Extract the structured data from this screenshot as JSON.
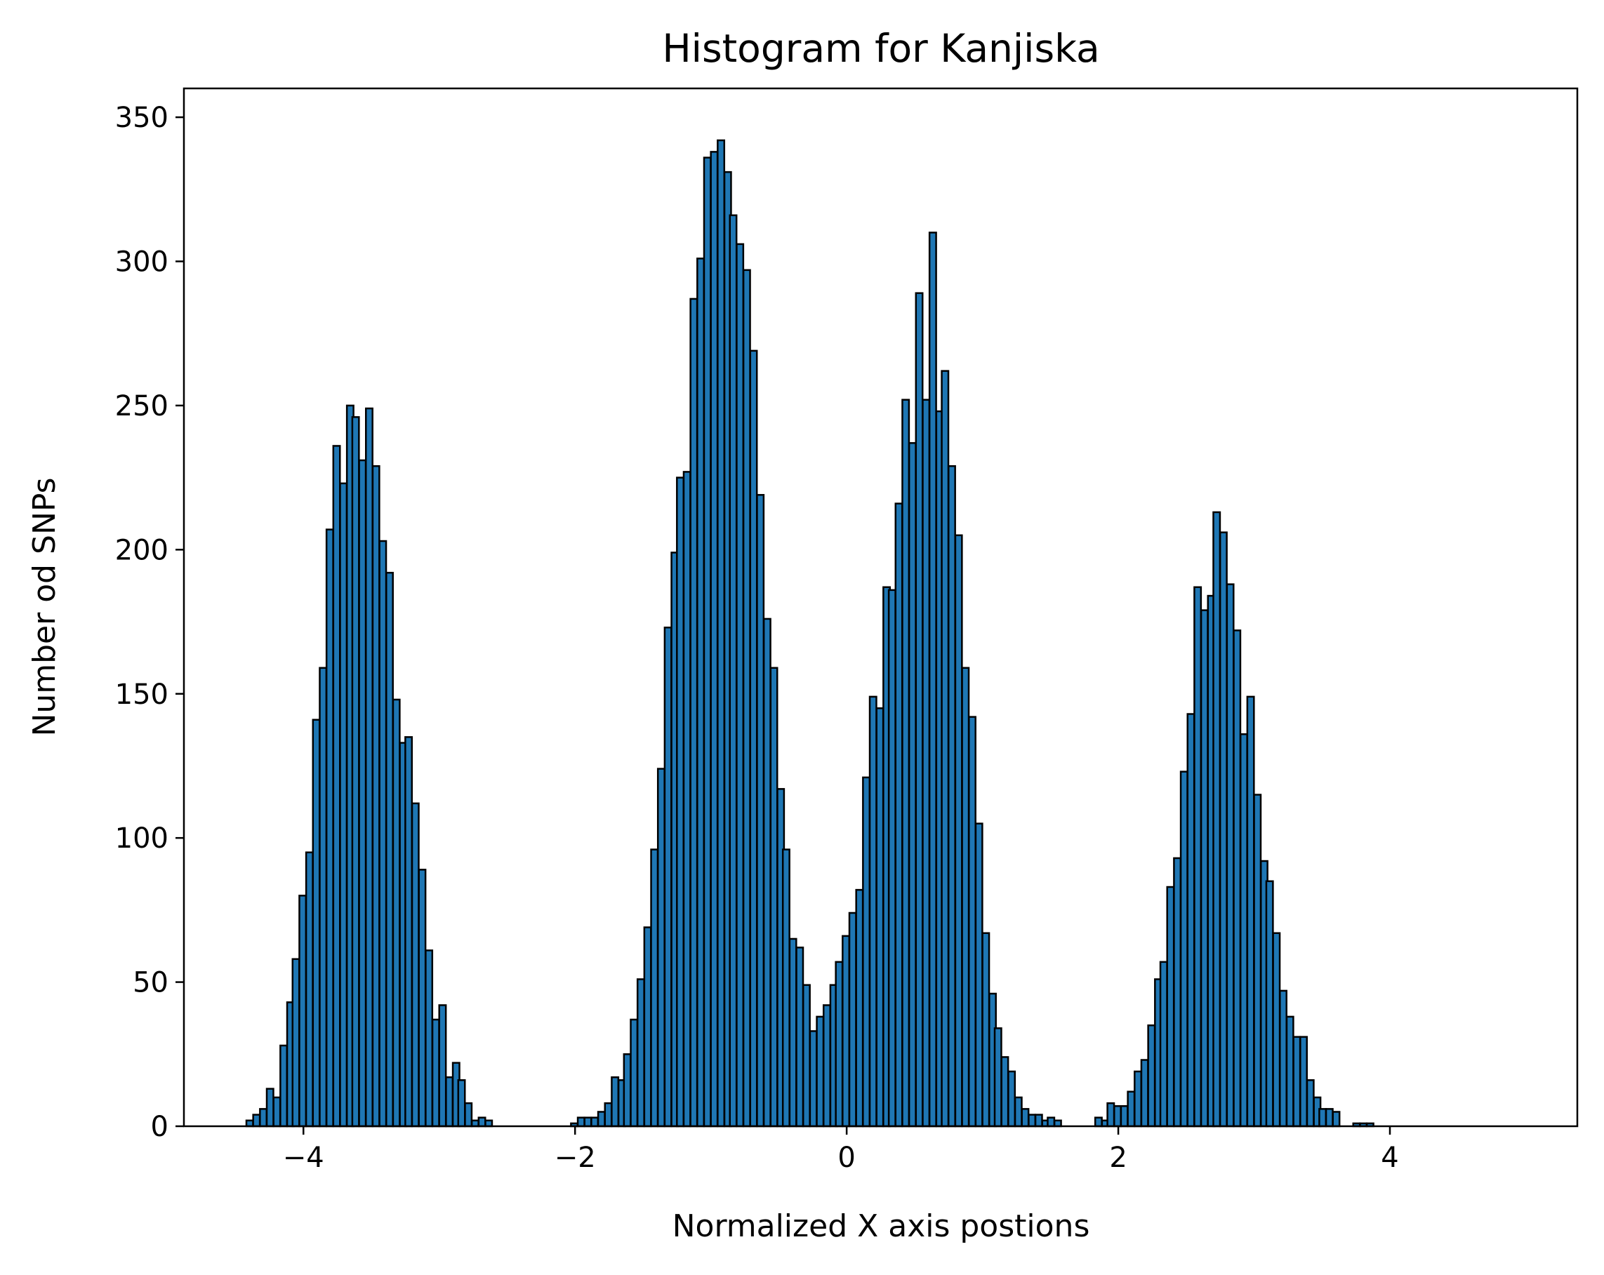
{
  "chart_data": {
    "type": "bar",
    "title": "Histogram for Kanjiska",
    "xlabel": "Normalized X axis postions",
    "ylabel": "Number od SNPs",
    "xlim": [
      -4.88,
      5.38
    ],
    "ylim": [
      0,
      360
    ],
    "bin_width": 0.0488,
    "xticks": [
      -4,
      -2,
      0,
      2,
      4
    ],
    "xtick_labels": [
      "−4",
      "−2",
      "0",
      "2",
      "4"
    ],
    "yticks": [
      0,
      50,
      100,
      150,
      200,
      250,
      300,
      350
    ],
    "ytick_labels": [
      "0",
      "50",
      "100",
      "150",
      "200",
      "250",
      "300",
      "350"
    ],
    "grid": false,
    "bar_color": "#1f77b4",
    "edge_color": "#000000",
    "bins": [
      {
        "x": -4.42,
        "y": 2
      },
      {
        "x": -4.37,
        "y": 4
      },
      {
        "x": -4.32,
        "y": 6
      },
      {
        "x": -4.27,
        "y": 13
      },
      {
        "x": -4.22,
        "y": 10
      },
      {
        "x": -4.17,
        "y": 28
      },
      {
        "x": -4.12,
        "y": 43
      },
      {
        "x": -4.08,
        "y": 58
      },
      {
        "x": -4.03,
        "y": 80
      },
      {
        "x": -3.98,
        "y": 95
      },
      {
        "x": -3.93,
        "y": 141
      },
      {
        "x": -3.88,
        "y": 159
      },
      {
        "x": -3.83,
        "y": 207
      },
      {
        "x": -3.78,
        "y": 236
      },
      {
        "x": -3.73,
        "y": 223
      },
      {
        "x": -3.68,
        "y": 250
      },
      {
        "x": -3.64,
        "y": 246
      },
      {
        "x": -3.59,
        "y": 231
      },
      {
        "x": -3.54,
        "y": 249
      },
      {
        "x": -3.49,
        "y": 229
      },
      {
        "x": -3.44,
        "y": 203
      },
      {
        "x": -3.39,
        "y": 192
      },
      {
        "x": -3.34,
        "y": 148
      },
      {
        "x": -3.29,
        "y": 133
      },
      {
        "x": -3.25,
        "y": 135
      },
      {
        "x": -3.2,
        "y": 112
      },
      {
        "x": -3.15,
        "y": 89
      },
      {
        "x": -3.1,
        "y": 61
      },
      {
        "x": -3.05,
        "y": 37
      },
      {
        "x": -3.0,
        "y": 42
      },
      {
        "x": -2.95,
        "y": 17
      },
      {
        "x": -2.9,
        "y": 22
      },
      {
        "x": -2.86,
        "y": 16
      },
      {
        "x": -2.81,
        "y": 8
      },
      {
        "x": -2.76,
        "y": 2
      },
      {
        "x": -2.71,
        "y": 3
      },
      {
        "x": -2.66,
        "y": 2
      },
      {
        "x": -2.03,
        "y": 1
      },
      {
        "x": -1.98,
        "y": 3
      },
      {
        "x": -1.93,
        "y": 3
      },
      {
        "x": -1.88,
        "y": 3
      },
      {
        "x": -1.83,
        "y": 5
      },
      {
        "x": -1.78,
        "y": 8
      },
      {
        "x": -1.73,
        "y": 17
      },
      {
        "x": -1.68,
        "y": 16
      },
      {
        "x": -1.64,
        "y": 25
      },
      {
        "x": -1.59,
        "y": 37
      },
      {
        "x": -1.54,
        "y": 51
      },
      {
        "x": -1.49,
        "y": 69
      },
      {
        "x": -1.44,
        "y": 96
      },
      {
        "x": -1.39,
        "y": 124
      },
      {
        "x": -1.34,
        "y": 173
      },
      {
        "x": -1.29,
        "y": 199
      },
      {
        "x": -1.25,
        "y": 225
      },
      {
        "x": -1.2,
        "y": 227
      },
      {
        "x": -1.15,
        "y": 287
      },
      {
        "x": -1.1,
        "y": 301
      },
      {
        "x": -1.05,
        "y": 336
      },
      {
        "x": -1.0,
        "y": 338
      },
      {
        "x": -0.95,
        "y": 342
      },
      {
        "x": -0.9,
        "y": 331
      },
      {
        "x": -0.86,
        "y": 316
      },
      {
        "x": -0.81,
        "y": 306
      },
      {
        "x": -0.76,
        "y": 297
      },
      {
        "x": -0.71,
        "y": 269
      },
      {
        "x": -0.66,
        "y": 219
      },
      {
        "x": -0.61,
        "y": 176
      },
      {
        "x": -0.56,
        "y": 159
      },
      {
        "x": -0.51,
        "y": 117
      },
      {
        "x": -0.47,
        "y": 96
      },
      {
        "x": -0.42,
        "y": 65
      },
      {
        "x": -0.37,
        "y": 62
      },
      {
        "x": -0.32,
        "y": 49
      },
      {
        "x": -0.27,
        "y": 33
      },
      {
        "x": -0.22,
        "y": 38
      },
      {
        "x": -0.17,
        "y": 42
      },
      {
        "x": -0.12,
        "y": 49
      },
      {
        "x": -0.08,
        "y": 57
      },
      {
        "x": -0.03,
        "y": 66
      },
      {
        "x": 0.02,
        "y": 74
      },
      {
        "x": 0.07,
        "y": 82
      },
      {
        "x": 0.12,
        "y": 121
      },
      {
        "x": 0.17,
        "y": 149
      },
      {
        "x": 0.22,
        "y": 145
      },
      {
        "x": 0.27,
        "y": 187
      },
      {
        "x": 0.31,
        "y": 186
      },
      {
        "x": 0.36,
        "y": 216
      },
      {
        "x": 0.41,
        "y": 252
      },
      {
        "x": 0.46,
        "y": 237
      },
      {
        "x": 0.51,
        "y": 289
      },
      {
        "x": 0.56,
        "y": 252
      },
      {
        "x": 0.61,
        "y": 310
      },
      {
        "x": 0.66,
        "y": 248
      },
      {
        "x": 0.7,
        "y": 262
      },
      {
        "x": 0.75,
        "y": 229
      },
      {
        "x": 0.8,
        "y": 205
      },
      {
        "x": 0.85,
        "y": 159
      },
      {
        "x": 0.9,
        "y": 142
      },
      {
        "x": 0.95,
        "y": 105
      },
      {
        "x": 1.0,
        "y": 67
      },
      {
        "x": 1.05,
        "y": 46
      },
      {
        "x": 1.09,
        "y": 34
      },
      {
        "x": 1.14,
        "y": 24
      },
      {
        "x": 1.19,
        "y": 19
      },
      {
        "x": 1.24,
        "y": 10
      },
      {
        "x": 1.29,
        "y": 6
      },
      {
        "x": 1.34,
        "y": 4
      },
      {
        "x": 1.39,
        "y": 4
      },
      {
        "x": 1.44,
        "y": 2
      },
      {
        "x": 1.48,
        "y": 3
      },
      {
        "x": 1.53,
        "y": 2
      },
      {
        "x": 1.83,
        "y": 3
      },
      {
        "x": 1.88,
        "y": 2
      },
      {
        "x": 1.92,
        "y": 8
      },
      {
        "x": 1.97,
        "y": 7
      },
      {
        "x": 2.02,
        "y": 7
      },
      {
        "x": 2.07,
        "y": 12
      },
      {
        "x": 2.12,
        "y": 19
      },
      {
        "x": 2.17,
        "y": 23
      },
      {
        "x": 2.22,
        "y": 35
      },
      {
        "x": 2.27,
        "y": 51
      },
      {
        "x": 2.31,
        "y": 57
      },
      {
        "x": 2.36,
        "y": 83
      },
      {
        "x": 2.41,
        "y": 93
      },
      {
        "x": 2.46,
        "y": 123
      },
      {
        "x": 2.51,
        "y": 143
      },
      {
        "x": 2.56,
        "y": 187
      },
      {
        "x": 2.61,
        "y": 179
      },
      {
        "x": 2.66,
        "y": 184
      },
      {
        "x": 2.7,
        "y": 213
      },
      {
        "x": 2.75,
        "y": 206
      },
      {
        "x": 2.8,
        "y": 188
      },
      {
        "x": 2.85,
        "y": 172
      },
      {
        "x": 2.9,
        "y": 136
      },
      {
        "x": 2.95,
        "y": 149
      },
      {
        "x": 3.0,
        "y": 115
      },
      {
        "x": 3.05,
        "y": 92
      },
      {
        "x": 3.09,
        "y": 85
      },
      {
        "x": 3.14,
        "y": 67
      },
      {
        "x": 3.19,
        "y": 47
      },
      {
        "x": 3.24,
        "y": 38
      },
      {
        "x": 3.29,
        "y": 31
      },
      {
        "x": 3.34,
        "y": 31
      },
      {
        "x": 3.39,
        "y": 16
      },
      {
        "x": 3.44,
        "y": 10
      },
      {
        "x": 3.48,
        "y": 6
      },
      {
        "x": 3.53,
        "y": 6
      },
      {
        "x": 3.58,
        "y": 5
      },
      {
        "x": 3.73,
        "y": 1
      },
      {
        "x": 3.78,
        "y": 1
      },
      {
        "x": 3.83,
        "y": 1
      }
    ]
  }
}
